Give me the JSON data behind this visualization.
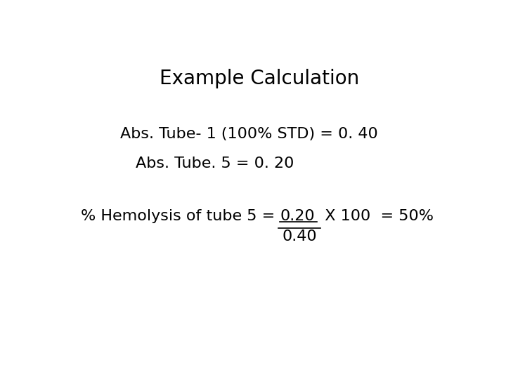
{
  "title": "Example Calculation",
  "title_fontsize": 20,
  "title_fontweight": "normal",
  "line1": "Abs. Tube- 1 (100% STD) = 0. 40",
  "line2": "Abs. Tube. 5 = 0. 20",
  "line3_prefix": "% Hemolysis of tube 5 = ",
  "line3_underlined": "0.20",
  "line3_suffix": "  X 100  = 50%",
  "line4_denom": "0.40",
  "text_fontsize": 16,
  "background_color": "#ffffff",
  "text_color": "#000000"
}
